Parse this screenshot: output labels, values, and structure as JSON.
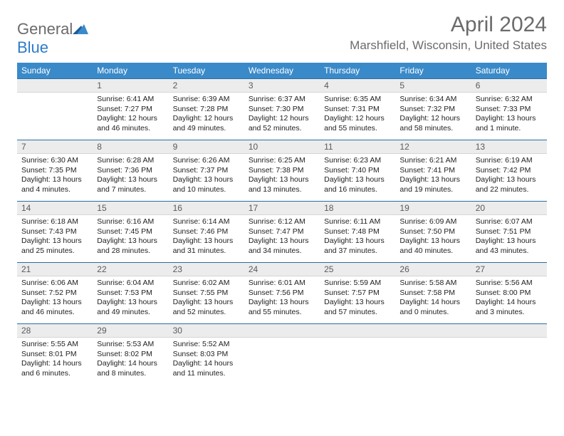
{
  "logo": {
    "word1": "General",
    "word2": "Blue"
  },
  "title": "April 2024",
  "location": "Marshfield, Wisconsin, United States",
  "colors": {
    "header_bg": "#3a8ac9",
    "header_text": "#ffffff",
    "daynum_bg": "#ececec",
    "daynum_border_top": "#2b6da3",
    "body_text": "#222222",
    "page_bg": "#ffffff",
    "logo_gray": "#6b6b6b",
    "logo_blue": "#2d7cc9"
  },
  "dayHeaders": [
    "Sunday",
    "Monday",
    "Tuesday",
    "Wednesday",
    "Thursday",
    "Friday",
    "Saturday"
  ],
  "weeks": [
    [
      {
        "n": "",
        "sr": "",
        "ss": "",
        "dl": ""
      },
      {
        "n": "1",
        "sr": "Sunrise: 6:41 AM",
        "ss": "Sunset: 7:27 PM",
        "dl": "Daylight: 12 hours and 46 minutes."
      },
      {
        "n": "2",
        "sr": "Sunrise: 6:39 AM",
        "ss": "Sunset: 7:28 PM",
        "dl": "Daylight: 12 hours and 49 minutes."
      },
      {
        "n": "3",
        "sr": "Sunrise: 6:37 AM",
        "ss": "Sunset: 7:30 PM",
        "dl": "Daylight: 12 hours and 52 minutes."
      },
      {
        "n": "4",
        "sr": "Sunrise: 6:35 AM",
        "ss": "Sunset: 7:31 PM",
        "dl": "Daylight: 12 hours and 55 minutes."
      },
      {
        "n": "5",
        "sr": "Sunrise: 6:34 AM",
        "ss": "Sunset: 7:32 PM",
        "dl": "Daylight: 12 hours and 58 minutes."
      },
      {
        "n": "6",
        "sr": "Sunrise: 6:32 AM",
        "ss": "Sunset: 7:33 PM",
        "dl": "Daylight: 13 hours and 1 minute."
      }
    ],
    [
      {
        "n": "7",
        "sr": "Sunrise: 6:30 AM",
        "ss": "Sunset: 7:35 PM",
        "dl": "Daylight: 13 hours and 4 minutes."
      },
      {
        "n": "8",
        "sr": "Sunrise: 6:28 AM",
        "ss": "Sunset: 7:36 PM",
        "dl": "Daylight: 13 hours and 7 minutes."
      },
      {
        "n": "9",
        "sr": "Sunrise: 6:26 AM",
        "ss": "Sunset: 7:37 PM",
        "dl": "Daylight: 13 hours and 10 minutes."
      },
      {
        "n": "10",
        "sr": "Sunrise: 6:25 AM",
        "ss": "Sunset: 7:38 PM",
        "dl": "Daylight: 13 hours and 13 minutes."
      },
      {
        "n": "11",
        "sr": "Sunrise: 6:23 AM",
        "ss": "Sunset: 7:40 PM",
        "dl": "Daylight: 13 hours and 16 minutes."
      },
      {
        "n": "12",
        "sr": "Sunrise: 6:21 AM",
        "ss": "Sunset: 7:41 PM",
        "dl": "Daylight: 13 hours and 19 minutes."
      },
      {
        "n": "13",
        "sr": "Sunrise: 6:19 AM",
        "ss": "Sunset: 7:42 PM",
        "dl": "Daylight: 13 hours and 22 minutes."
      }
    ],
    [
      {
        "n": "14",
        "sr": "Sunrise: 6:18 AM",
        "ss": "Sunset: 7:43 PM",
        "dl": "Daylight: 13 hours and 25 minutes."
      },
      {
        "n": "15",
        "sr": "Sunrise: 6:16 AM",
        "ss": "Sunset: 7:45 PM",
        "dl": "Daylight: 13 hours and 28 minutes."
      },
      {
        "n": "16",
        "sr": "Sunrise: 6:14 AM",
        "ss": "Sunset: 7:46 PM",
        "dl": "Daylight: 13 hours and 31 minutes."
      },
      {
        "n": "17",
        "sr": "Sunrise: 6:12 AM",
        "ss": "Sunset: 7:47 PM",
        "dl": "Daylight: 13 hours and 34 minutes."
      },
      {
        "n": "18",
        "sr": "Sunrise: 6:11 AM",
        "ss": "Sunset: 7:48 PM",
        "dl": "Daylight: 13 hours and 37 minutes."
      },
      {
        "n": "19",
        "sr": "Sunrise: 6:09 AM",
        "ss": "Sunset: 7:50 PM",
        "dl": "Daylight: 13 hours and 40 minutes."
      },
      {
        "n": "20",
        "sr": "Sunrise: 6:07 AM",
        "ss": "Sunset: 7:51 PM",
        "dl": "Daylight: 13 hours and 43 minutes."
      }
    ],
    [
      {
        "n": "21",
        "sr": "Sunrise: 6:06 AM",
        "ss": "Sunset: 7:52 PM",
        "dl": "Daylight: 13 hours and 46 minutes."
      },
      {
        "n": "22",
        "sr": "Sunrise: 6:04 AM",
        "ss": "Sunset: 7:53 PM",
        "dl": "Daylight: 13 hours and 49 minutes."
      },
      {
        "n": "23",
        "sr": "Sunrise: 6:02 AM",
        "ss": "Sunset: 7:55 PM",
        "dl": "Daylight: 13 hours and 52 minutes."
      },
      {
        "n": "24",
        "sr": "Sunrise: 6:01 AM",
        "ss": "Sunset: 7:56 PM",
        "dl": "Daylight: 13 hours and 55 minutes."
      },
      {
        "n": "25",
        "sr": "Sunrise: 5:59 AM",
        "ss": "Sunset: 7:57 PM",
        "dl": "Daylight: 13 hours and 57 minutes."
      },
      {
        "n": "26",
        "sr": "Sunrise: 5:58 AM",
        "ss": "Sunset: 7:58 PM",
        "dl": "Daylight: 14 hours and 0 minutes."
      },
      {
        "n": "27",
        "sr": "Sunrise: 5:56 AM",
        "ss": "Sunset: 8:00 PM",
        "dl": "Daylight: 14 hours and 3 minutes."
      }
    ],
    [
      {
        "n": "28",
        "sr": "Sunrise: 5:55 AM",
        "ss": "Sunset: 8:01 PM",
        "dl": "Daylight: 14 hours and 6 minutes."
      },
      {
        "n": "29",
        "sr": "Sunrise: 5:53 AM",
        "ss": "Sunset: 8:02 PM",
        "dl": "Daylight: 14 hours and 8 minutes."
      },
      {
        "n": "30",
        "sr": "Sunrise: 5:52 AM",
        "ss": "Sunset: 8:03 PM",
        "dl": "Daylight: 14 hours and 11 minutes."
      },
      {
        "n": "",
        "sr": "",
        "ss": "",
        "dl": ""
      },
      {
        "n": "",
        "sr": "",
        "ss": "",
        "dl": ""
      },
      {
        "n": "",
        "sr": "",
        "ss": "",
        "dl": ""
      },
      {
        "n": "",
        "sr": "",
        "ss": "",
        "dl": ""
      }
    ]
  ]
}
